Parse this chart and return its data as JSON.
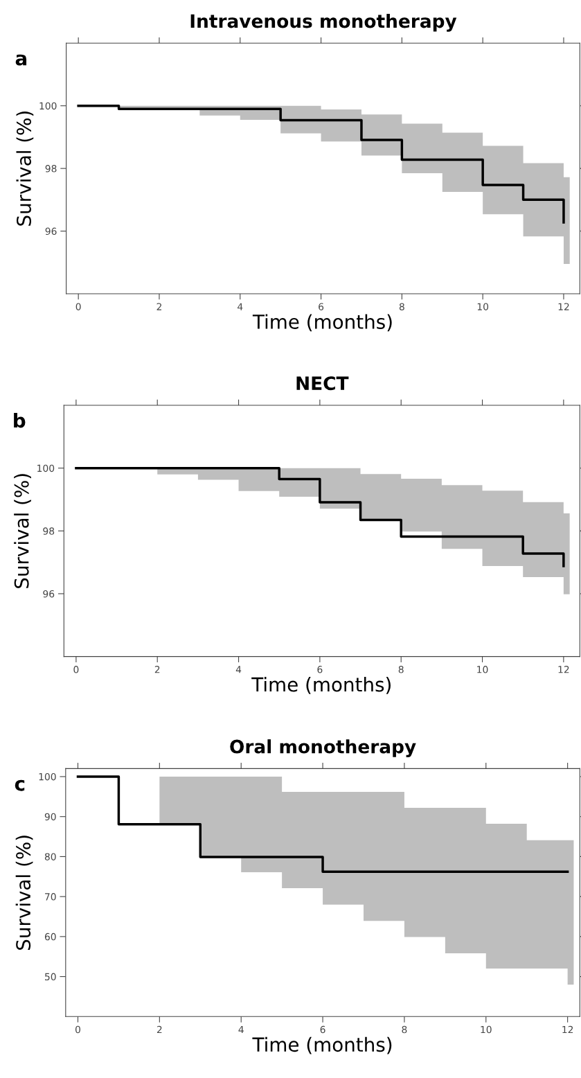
{
  "chart_data": [
    {
      "type": "step",
      "title": "Intravenous monotherapy",
      "xlabel": "Time (months)",
      "ylabel": "Survival (%)",
      "annotations": [
        "a"
      ],
      "xlim": [
        -0.3,
        12.4
      ],
      "xticks": [
        0,
        2,
        4,
        6,
        8,
        10,
        12
      ],
      "ylim": [
        94,
        102
      ],
      "yticks": [
        96,
        98,
        100
      ],
      "grid": false,
      "series": [
        {
          "color": "#000000",
          "x": [
            0,
            1,
            2,
            3,
            4,
            5,
            6,
            7,
            8,
            9,
            10,
            11,
            12,
            12.15
          ],
          "values": [
            100,
            99.9,
            99.9,
            99.9,
            99.9,
            99.54,
            99.54,
            98.91,
            98.28,
            98.28,
            97.47,
            97.0,
            96.28,
            null
          ],
          "lower": [
            100,
            99.9,
            99.9,
            99.69,
            99.55,
            99.12,
            98.86,
            98.41,
            97.85,
            97.25,
            96.54,
            95.83,
            94.95,
            94.95
          ],
          "upper": [
            100,
            100,
            100,
            100,
            100,
            100,
            99.88,
            99.72,
            99.43,
            99.14,
            98.72,
            98.17,
            97.72,
            97.72
          ]
        }
      ]
    },
    {
      "type": "step",
      "title": "NECT",
      "xlabel": "Time (months)",
      "ylabel": "Survival (%)",
      "annotations": [
        "b"
      ],
      "xlim": [
        -0.3,
        12.4
      ],
      "xticks": [
        0,
        2,
        4,
        6,
        8,
        10,
        12
      ],
      "ylim": [
        94,
        102
      ],
      "yticks": [
        96,
        98,
        100
      ],
      "grid": false,
      "series": [
        {
          "color": "#000000",
          "x": [
            0,
            1,
            2,
            3,
            4,
            5,
            6,
            7,
            8,
            9,
            10,
            11,
            12,
            12.15
          ],
          "values": [
            100,
            100,
            100,
            100,
            100,
            99.65,
            98.91,
            98.35,
            97.82,
            97.82,
            97.82,
            97.28,
            96.88,
            null
          ],
          "lower": [
            100,
            100,
            99.8,
            99.63,
            99.27,
            99.09,
            98.71,
            98.35,
            97.98,
            97.43,
            96.88,
            96.53,
            95.98,
            95.98
          ],
          "upper": [
            100,
            100,
            100,
            100,
            100,
            100,
            100,
            99.81,
            99.66,
            99.46,
            99.28,
            98.92,
            98.56,
            98.56
          ]
        }
      ]
    },
    {
      "type": "step",
      "title": "Oral monotherapy",
      "xlabel": "Time (months)",
      "ylabel": "Survival (%)",
      "annotations": [
        "c"
      ],
      "xlim": [
        -0.3,
        12.3
      ],
      "xticks": [
        0,
        2,
        4,
        6,
        8,
        10,
        12
      ],
      "ylim": [
        40,
        102
      ],
      "yticks": [
        50,
        60,
        70,
        80,
        90,
        100
      ],
      "grid": false,
      "series": [
        {
          "color": "#000000",
          "x": [
            0,
            1,
            2,
            3,
            4,
            5,
            6,
            7,
            8,
            9,
            10,
            11,
            12,
            12.15
          ],
          "values": [
            100,
            88.1,
            88.1,
            79.9,
            79.9,
            79.9,
            76.2,
            76.2,
            76.2,
            76.2,
            76.2,
            76.2,
            76.2,
            null
          ],
          "lower": [
            null,
            null,
            88.1,
            79.9,
            76.1,
            72.1,
            68.0,
            63.9,
            59.9,
            55.8,
            52.0,
            52.0,
            48.0,
            48.0
          ],
          "upper": [
            null,
            null,
            100,
            100,
            100,
            96.2,
            96.2,
            96.2,
            92.2,
            92.2,
            88.2,
            84.1,
            84.1,
            84.1
          ]
        }
      ]
    }
  ]
}
